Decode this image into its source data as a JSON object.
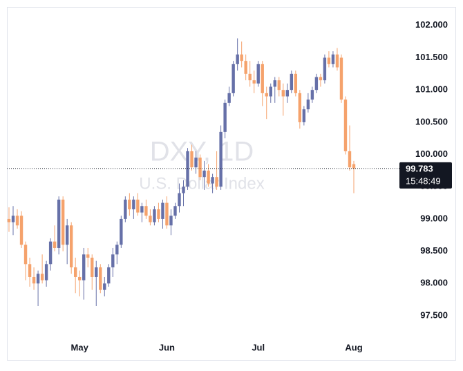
{
  "chart_data": {
    "type": "candlestick",
    "title": "DXY, 1D",
    "subtitle": "U.S. Dollar Index",
    "categories": [
      null,
      null,
      null,
      null,
      null,
      null,
      null,
      null,
      null,
      null,
      null,
      null,
      null,
      null,
      null,
      null,
      null,
      "May",
      null,
      null,
      null,
      null,
      null,
      null,
      null,
      null,
      null,
      null,
      null,
      null,
      null,
      null,
      null,
      null,
      null,
      null,
      null,
      null,
      "Jun",
      null,
      null,
      null,
      null,
      null,
      null,
      null,
      null,
      null,
      null,
      null,
      null,
      null,
      null,
      null,
      null,
      null,
      null,
      null,
      null,
      null,
      "Jul",
      null,
      null,
      null,
      null,
      null,
      null,
      null,
      null,
      null,
      null,
      null,
      null,
      null,
      null,
      null,
      null,
      null,
      null,
      null,
      null,
      null,
      null,
      "Aug"
    ],
    "open": [
      99.0,
      98.95,
      99.05,
      99.05,
      98.6,
      98.3,
      98.1,
      98.0,
      98.15,
      98.05,
      98.3,
      98.65,
      98.55,
      99.3,
      98.6,
      98.9,
      98.25,
      98.1,
      98.05,
      98.45,
      98.4,
      98.1,
      98.25,
      97.9,
      98.0,
      98.25,
      98.45,
      98.6,
      99.0,
      99.3,
      99.15,
      99.3,
      99.1,
      99.2,
      99.05,
      98.95,
      99.15,
      99.0,
      99.25,
      98.9,
      99.05,
      99.2,
      99.4,
      99.5,
      100.05,
      99.8,
      99.95,
      99.65,
      99.75,
      99.55,
      99.65,
      99.5,
      100.35,
      100.8,
      100.95,
      101.4,
      101.55,
      101.45,
      101.25,
      101.15,
      101.1,
      101.4,
      100.95,
      100.9,
      101.05,
      101.15,
      101.0,
      100.9,
      101.0,
      101.25,
      100.95,
      100.5,
      100.7,
      100.85,
      101.0,
      101.2,
      101.15,
      101.5,
      101.4,
      101.55,
      101.5,
      100.85,
      100.05,
      99.85
    ],
    "high": [
      99.18,
      99.2,
      99.15,
      99.12,
      98.65,
      98.4,
      98.25,
      98.2,
      98.45,
      98.35,
      98.7,
      98.9,
      99.35,
      99.35,
      99.0,
      98.95,
      98.4,
      98.2,
      98.55,
      98.55,
      98.45,
      98.35,
      98.3,
      98.1,
      98.3,
      98.55,
      98.65,
      99.05,
      99.35,
      99.4,
      99.35,
      99.4,
      99.25,
      99.3,
      99.15,
      99.2,
      99.25,
      99.3,
      99.35,
      99.15,
      99.25,
      99.55,
      99.6,
      100.1,
      100.15,
      100.05,
      100.0,
      99.9,
      99.85,
      99.7,
      100.05,
      100.45,
      100.85,
      101.05,
      101.45,
      101.8,
      101.75,
      101.55,
      101.45,
      101.3,
      101.45,
      101.45,
      101.05,
      101.1,
      101.2,
      101.2,
      101.1,
      101.1,
      101.3,
      101.3,
      101.0,
      100.75,
      100.95,
      101.05,
      101.25,
      101.25,
      101.55,
      101.6,
      101.6,
      101.65,
      101.55,
      100.9,
      100.45,
      99.9
    ],
    "low": [
      98.8,
      98.75,
      98.85,
      98.55,
      98.05,
      97.95,
      97.9,
      97.65,
      98.0,
      97.95,
      98.2,
      98.5,
      98.45,
      98.5,
      98.3,
      98.15,
      97.85,
      97.8,
      97.75,
      98.25,
      97.9,
      97.65,
      97.85,
      97.8,
      97.95,
      98.1,
      98.3,
      98.55,
      98.95,
      99.05,
      99.0,
      99.05,
      98.95,
      99.0,
      98.9,
      98.9,
      98.95,
      98.85,
      98.85,
      98.75,
      99.0,
      99.1,
      99.2,
      99.45,
      99.75,
      99.7,
      99.6,
      99.45,
      99.5,
      99.4,
      99.45,
      99.45,
      100.25,
      100.75,
      100.9,
      101.3,
      101.35,
      101.15,
      101.05,
      100.95,
      101.05,
      100.75,
      100.55,
      100.8,
      100.8,
      100.9,
      100.6,
      100.8,
      100.95,
      100.9,
      100.4,
      100.45,
      100.65,
      100.8,
      100.95,
      101.05,
      101.1,
      101.35,
      101.35,
      101.3,
      100.8,
      100.0,
      99.75,
      99.4
    ],
    "close": [
      98.95,
      99.05,
      98.9,
      98.6,
      98.3,
      98.1,
      98.0,
      98.15,
      98.05,
      98.3,
      98.65,
      98.55,
      99.3,
      98.6,
      98.9,
      98.25,
      98.1,
      98.05,
      98.45,
      98.4,
      98.1,
      98.25,
      97.9,
      98.0,
      98.25,
      98.45,
      98.6,
      99.0,
      99.3,
      99.15,
      99.3,
      99.1,
      99.2,
      99.05,
      98.95,
      99.15,
      99.0,
      99.25,
      98.9,
      99.05,
      99.2,
      99.4,
      99.5,
      100.05,
      99.8,
      99.95,
      99.65,
      99.75,
      99.55,
      99.65,
      99.5,
      100.35,
      100.8,
      100.95,
      101.4,
      101.55,
      101.45,
      101.25,
      101.15,
      101.1,
      101.4,
      100.95,
      100.9,
      101.05,
      101.15,
      101.0,
      100.9,
      101.0,
      101.25,
      100.95,
      100.5,
      100.7,
      100.85,
      101.0,
      101.2,
      101.15,
      101.5,
      101.4,
      101.55,
      101.35,
      100.85,
      100.05,
      99.8,
      99.783
    ],
    "up_color": "#6670a8",
    "down_color": "#f5a26c",
    "last_price": 99.783,
    "last_time": "15:48:49",
    "ylim": [
      97.2,
      102.18
    ],
    "yticks": [
      {
        "value": 97.5,
        "label": "97.500"
      },
      {
        "value": 98,
        "label": "98.000"
      },
      {
        "value": 98.5,
        "label": "98.500"
      },
      {
        "value": 99,
        "label": "99.000"
      },
      {
        "value": 99.5,
        "label": "99.500"
      },
      {
        "value": 100,
        "label": "100.000"
      },
      {
        "value": 100.5,
        "label": "100.500"
      },
      {
        "value": 101,
        "label": "101.000"
      },
      {
        "value": 101.5,
        "label": "101.500"
      },
      {
        "value": 102,
        "label": "102.000"
      }
    ]
  }
}
